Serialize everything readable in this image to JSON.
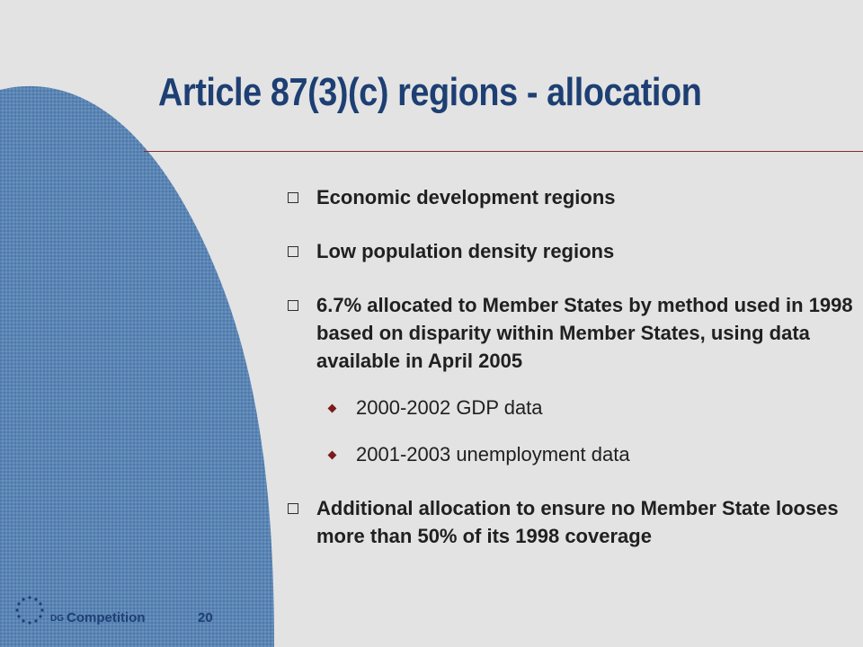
{
  "slide": {
    "title": "Article 87(3)(c) regions - allocation",
    "bullets": [
      {
        "text": "Economic development regions"
      },
      {
        "text": "Low population density regions"
      },
      {
        "text": "6.7% allocated to Member States by method used in 1998 based on disparity within Member States, using data available in April 2005"
      },
      {
        "text": "Additional allocation to ensure no Member State looses more than 50% of its 1998 coverage"
      }
    ],
    "sub_bullets": [
      {
        "text": "2000-2002 GDP data"
      },
      {
        "text": "2001-2003 unemployment data"
      }
    ]
  },
  "footer": {
    "dg": "DG",
    "label": "Competition",
    "page_number": "20",
    "logo_icon": "eu-stars-icon"
  },
  "colors": {
    "background": "#e3e3e3",
    "title": "#1d3f73",
    "decor_fill": "#5b85b4",
    "rule": "#8a2b2b",
    "sub_bullet": "#7a1b1b"
  }
}
